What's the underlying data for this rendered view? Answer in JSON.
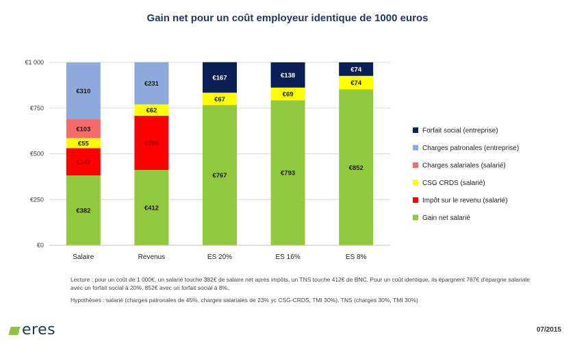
{
  "chart_data": {
    "type": "bar",
    "stacked": true,
    "title": "Gain net pour un coût employeur identique de 1000 euros",
    "categories": [
      "Salaire",
      "Revenus",
      "ES 20%",
      "ES 16%",
      "ES 8%"
    ],
    "y_ticks": [
      "€0",
      "€250",
      "€500",
      "€750",
      "€1 000"
    ],
    "ylim": [
      0,
      1000
    ],
    "legend_position": "right",
    "series": [
      {
        "name": "Gain net salarié",
        "color": "#92c83e",
        "text_color": "#1a1a1a",
        "values": [
          382,
          412,
          767,
          793,
          852
        ],
        "labels": [
          "€382",
          "€412",
          "€767",
          "€793",
          "€852"
        ]
      },
      {
        "name": "Impôt sur le revenu (salarié)",
        "color": "#ff0000",
        "text_color": "#a00000",
        "values": [
          149,
          296,
          0,
          0,
          0
        ],
        "labels": [
          "€149",
          "€296",
          "",
          "",
          ""
        ]
      },
      {
        "name": "CSG CRDS (salarié)",
        "color": "#ffff00",
        "text_color": "#1a1a1a",
        "values": [
          55,
          62,
          67,
          69,
          74
        ],
        "labels": [
          "€55",
          "€62",
          "€67",
          "€69",
          "€74"
        ]
      },
      {
        "name": "Charges salariales (salarié)",
        "color": "#f46b6b",
        "text_color": "#1a1a1a",
        "values": [
          103,
          0,
          0,
          0,
          0
        ],
        "labels": [
          "€103",
          "",
          "",
          "",
          ""
        ]
      },
      {
        "name": "Charges patronales (entreprise)",
        "color": "#8ea9db",
        "text_color": "#1a1a1a",
        "values": [
          310,
          231,
          0,
          0,
          0
        ],
        "labels": [
          "€310",
          "€231",
          "",
          "",
          ""
        ]
      },
      {
        "name": "Forfait social (entreprise)",
        "color": "#0b1f55",
        "text_color": "#ffffff",
        "values": [
          0,
          0,
          167,
          138,
          74
        ],
        "labels": [
          "",
          "",
          "€167",
          "€138",
          "€74"
        ]
      }
    ],
    "legend_order": [
      5,
      4,
      3,
      2,
      1,
      0
    ]
  },
  "notes": {
    "reading": "Lecture : pour un coût de 1 000€, un salarié touche 382€ de salaire net après impôts, un TNS touche 412€ de BNC. Pour un coût identique, ils épargnent 767€ d'épargne salariale avec un forfait social à 20%, 852€ avec un forfait social à 8%.",
    "hypotheses": "Hypothèses : salarié (charges patronales de 45%, charges salariales de 23% yc CSG-CRDS, TMI 30%), TNS (charges 30%, TMI 30%)"
  },
  "footer": {
    "logo_text": "eres",
    "date": "07/2015"
  }
}
